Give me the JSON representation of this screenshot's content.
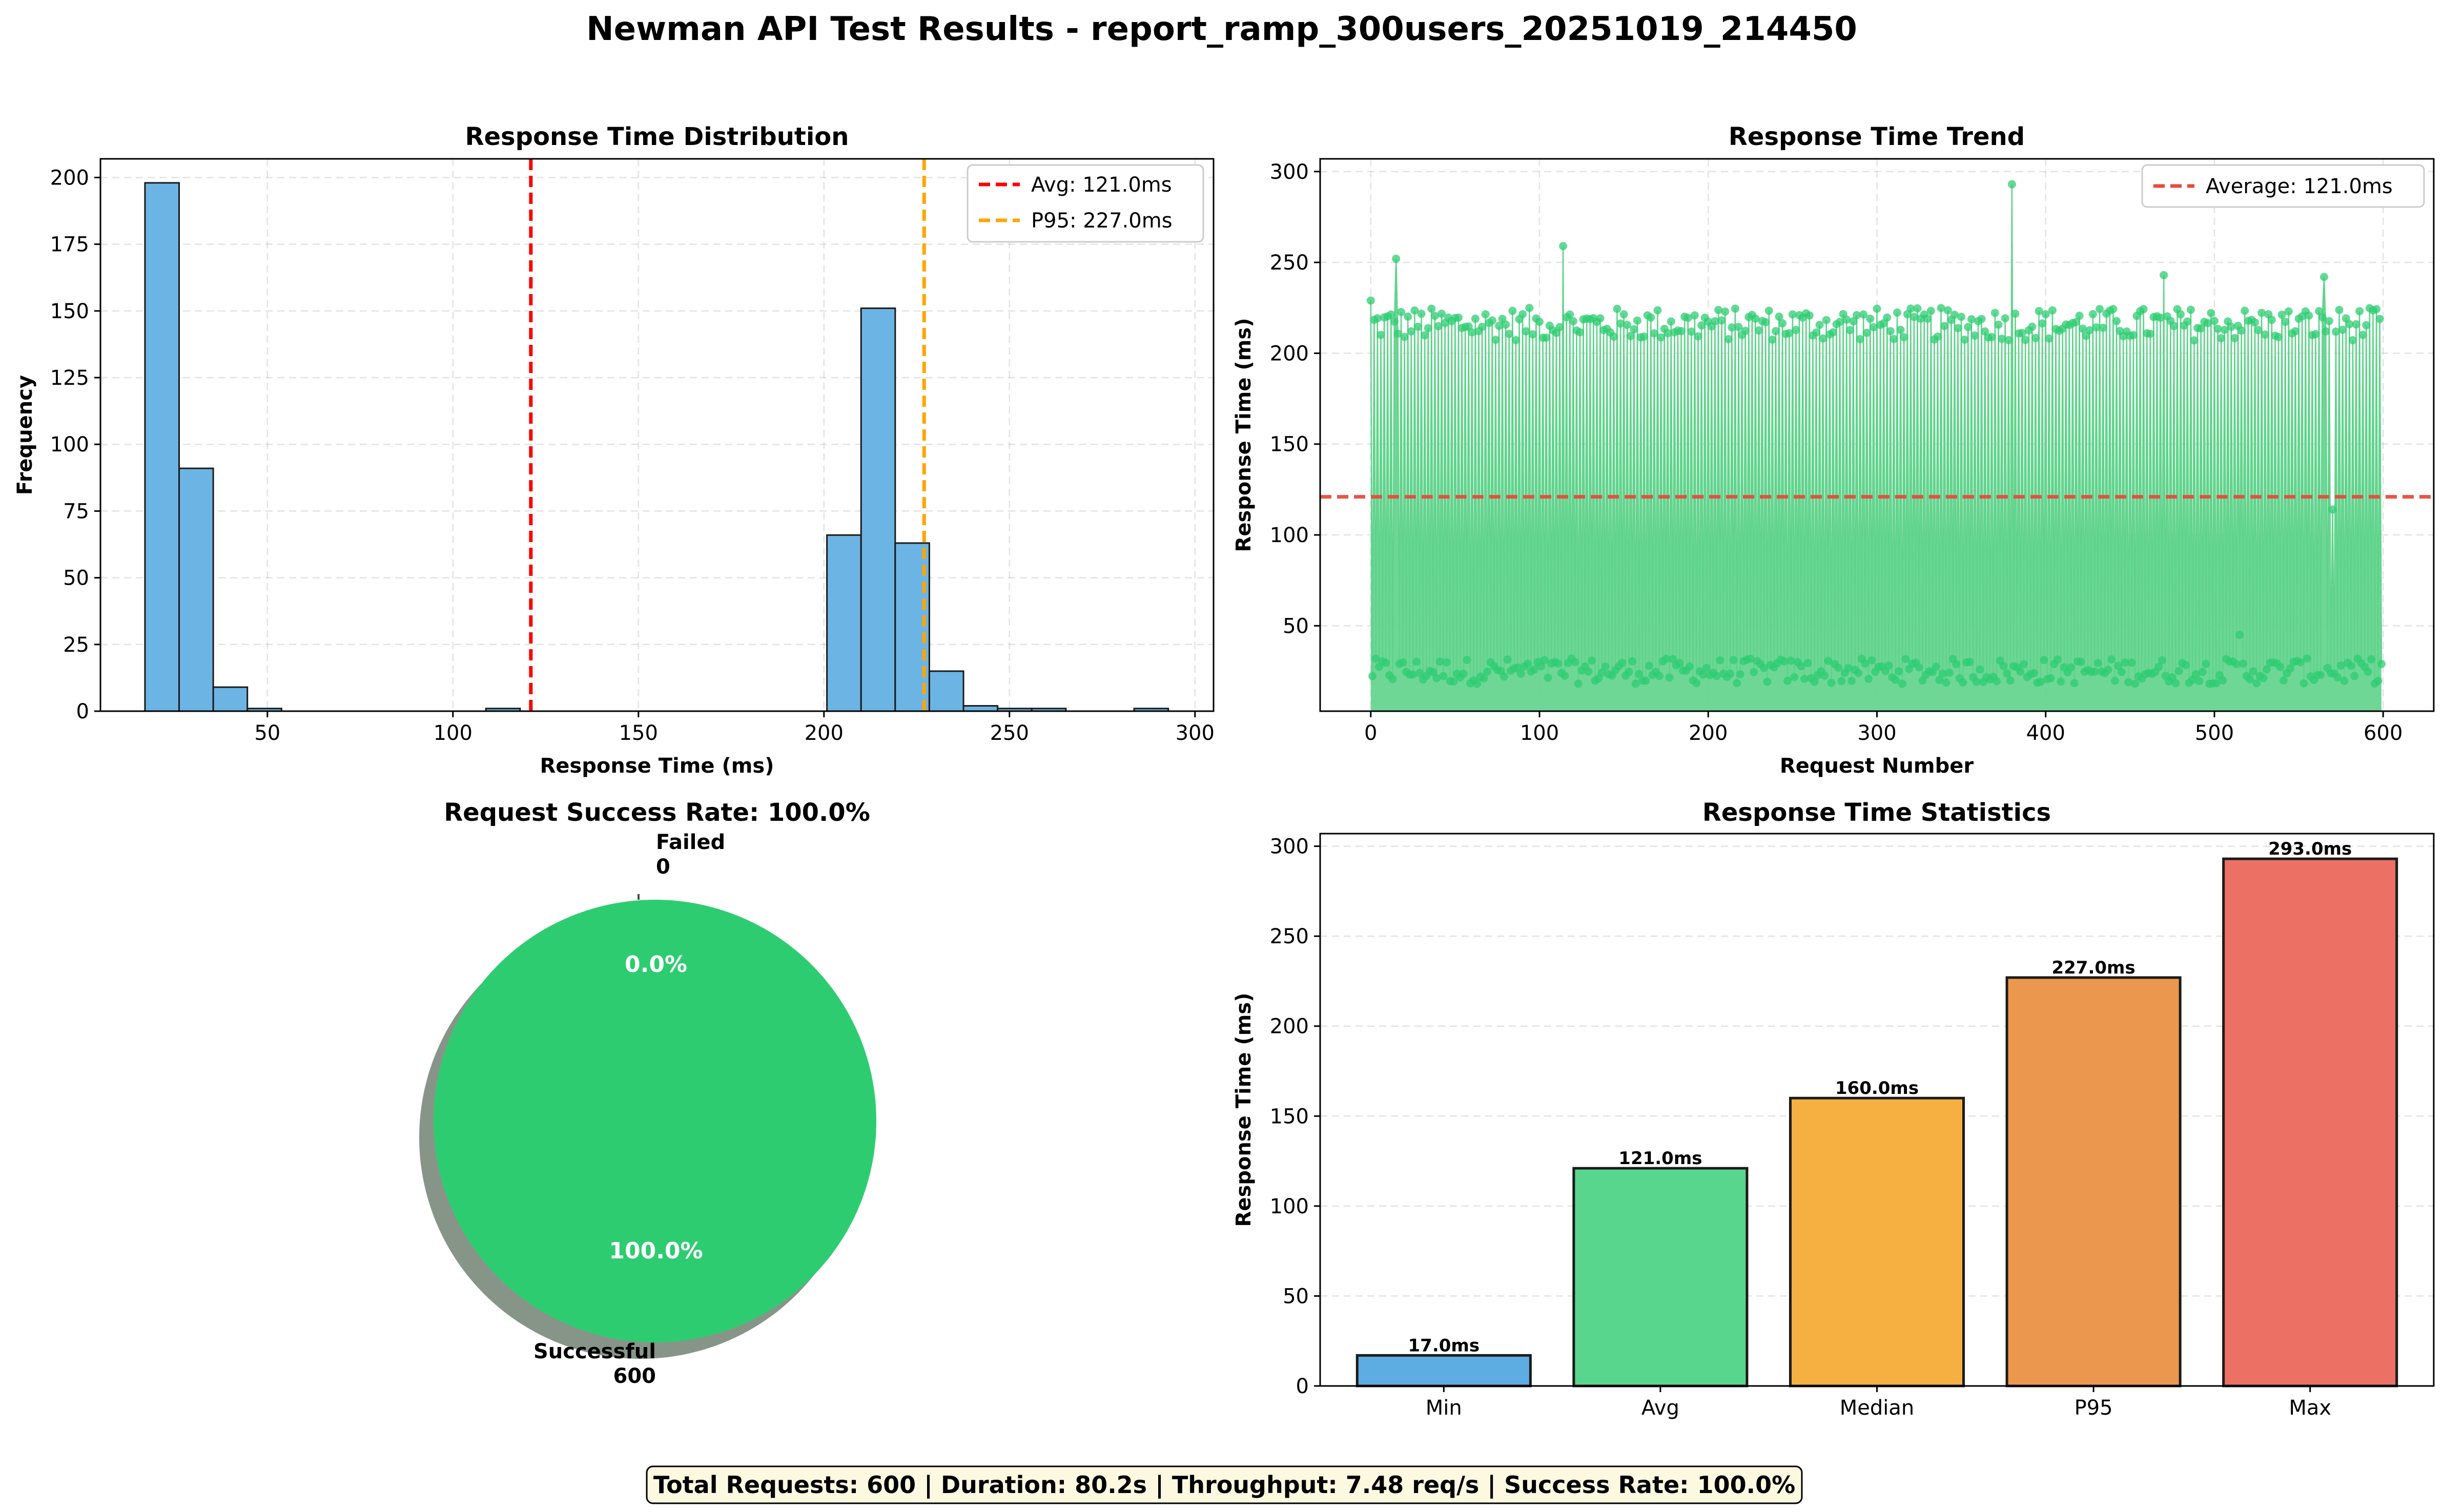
{
  "figure": {
    "title": "Newman API Test Results - report_ramp_300users_20251019_214450",
    "footer": "Total Requests: 600 | Duration: 80.2s | Throughput: 7.48 req/s | Success Rate: 100.0%"
  },
  "chart_data": [
    {
      "type": "bar",
      "title": "Response Time Distribution",
      "xlabel": "Response Time (ms)",
      "ylabel": "Frequency",
      "xlim": [
        5,
        305
      ],
      "ylim": [
        0,
        207
      ],
      "xticks": [
        50,
        100,
        150,
        200,
        250,
        300
      ],
      "yticks": [
        0,
        25,
        50,
        75,
        100,
        125,
        150,
        175,
        200
      ],
      "bin_width": 9.2,
      "bins": [
        {
          "x0": 17.0,
          "count": 198
        },
        {
          "x0": 26.2,
          "count": 91
        },
        {
          "x0": 35.4,
          "count": 9
        },
        {
          "x0": 44.6,
          "count": 1
        },
        {
          "x0": 108.9,
          "count": 1
        },
        {
          "x0": 200.8,
          "count": 66
        },
        {
          "x0": 210.0,
          "count": 151
        },
        {
          "x0": 219.2,
          "count": 63
        },
        {
          "x0": 228.4,
          "count": 15
        },
        {
          "x0": 237.6,
          "count": 2
        },
        {
          "x0": 246.8,
          "count": 1
        },
        {
          "x0": 256.0,
          "count": 1
        },
        {
          "x0": 283.6,
          "count": 1
        }
      ],
      "lines": [
        {
          "label": "Avg: 121.0ms",
          "x": 121.0,
          "color": "#ff0000"
        },
        {
          "label": "P95: 227.0ms",
          "x": 227.0,
          "color": "#ffa500"
        }
      ],
      "bar_color": "#6cb4e4",
      "grid": true,
      "legend": "top-right"
    },
    {
      "type": "line",
      "title": "Response Time Trend",
      "xlabel": "Request Number",
      "ylabel": "Response Time (ms)",
      "xlim": [
        -30,
        630
      ],
      "ylim": [
        3,
        307
      ],
      "xticks": [
        0,
        100,
        200,
        300,
        400,
        500,
        600
      ],
      "yticks": [
        50,
        100,
        150,
        200,
        250,
        300
      ],
      "series": [
        {
          "n": 600,
          "fill": "#5fd38b",
          "marker": "#2ecc71",
          "high_mean": 215,
          "low_mean": 25,
          "spikes": [
            {
              "index": 0,
              "value": 229
            },
            {
              "index": 15,
              "value": 252
            },
            {
              "index": 114,
              "value": 259
            },
            {
              "index": 380,
              "value": 293
            },
            {
              "index": 470,
              "value": 243
            },
            {
              "index": 565,
              "value": 242
            },
            {
              "index": 570,
              "value": 114
            },
            {
              "index": 515,
              "value": 45
            }
          ]
        }
      ],
      "reference": {
        "label": "Average: 121.0ms",
        "y": 121.0,
        "color": "#e74c3c"
      },
      "grid": true,
      "legend": "top-right"
    },
    {
      "type": "pie",
      "title": "Request Success Rate: 100.0%",
      "slices": [
        {
          "label": "Successful",
          "count": "600",
          "value": 600,
          "pct": "100.0%",
          "color": "#2ecc71"
        },
        {
          "label": "Failed",
          "count": "0",
          "value": 0,
          "pct": "0.0%",
          "color": "#e74c3c"
        }
      ],
      "shadow": true
    },
    {
      "type": "bar",
      "title": "Response Time Statistics",
      "ylabel": "Response Time (ms)",
      "categories": [
        "Min",
        "Avg",
        "Median",
        "P95",
        "Max"
      ],
      "values": [
        17.0,
        121.0,
        160.0,
        227.0,
        293.0
      ],
      "value_labels": [
        "17.0ms",
        "121.0ms",
        "160.0ms",
        "227.0ms",
        "293.0ms"
      ],
      "colors": [
        "#5dade2",
        "#58d68d",
        "#f5b041",
        "#eb984e",
        "#ec7063"
      ],
      "ylim": [
        0,
        307
      ],
      "yticks": [
        0,
        50,
        100,
        150,
        200,
        250,
        300
      ],
      "grid": true
    }
  ]
}
